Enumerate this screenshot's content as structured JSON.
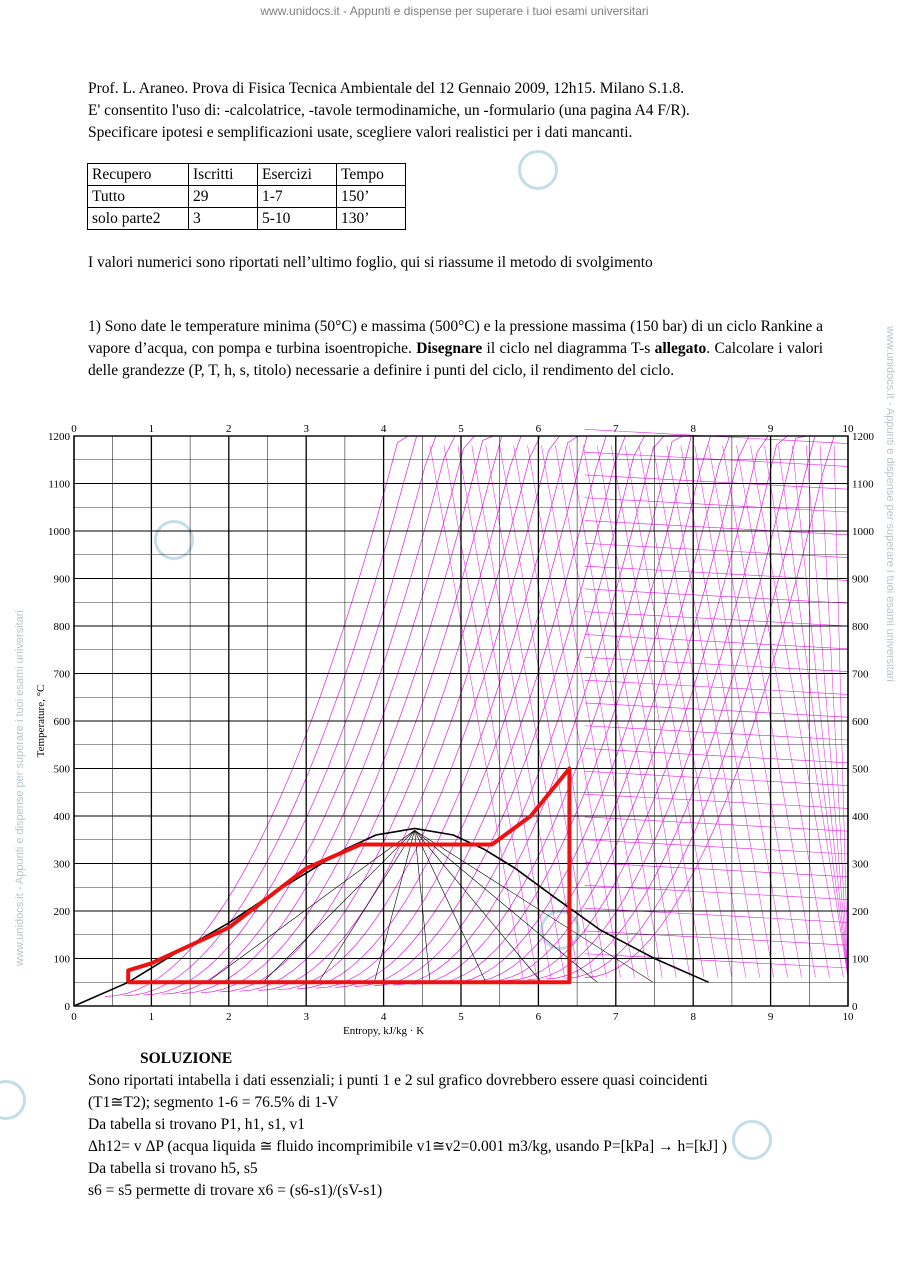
{
  "banner": {
    "text": "www.unidocs.it - Appunti e dispense per superare i tuoi esami universitari"
  },
  "header": {
    "line1": "Prof. L. Araneo.    Prova di Fisica Tecnica Ambientale del 12 Gennaio 2009, 12h15. Milano S.1.8.",
    "line2": "E' consentito l'uso di: -calcolatrice, -tavole termodinamiche, un -formulario (una pagina A4 F/R).",
    "line3": "Specificare ipotesi e semplificazioni usate, scegliere valori realistici per i dati mancanti."
  },
  "table": {
    "headers": [
      "Recupero",
      "Iscritti",
      "Esercizi",
      "Tempo"
    ],
    "rows": [
      [
        "Tutto",
        "29",
        "1-7",
        "150’"
      ],
      [
        "solo parte2",
        "3",
        "5-10",
        "130’"
      ]
    ]
  },
  "note": "I valori numerici sono riportati nell’ultimo foglio, qui si riassume il metodo di svolgimento",
  "question1": {
    "part1": "1)  Sono date le temperature minima (50°C) e massima (500°C) e la pressione massima (150 bar) di un ciclo Rankine a vapore d’acqua, con  pompa e turbina isoentropiche. ",
    "bold1": "Disegnare",
    "part2": " il ciclo nel diagramma T-s ",
    "bold2": "allegato",
    "part3": ". Calcolare i valori delle grandezze (P, T, h, s, titolo) necessarie a definire i punti del ciclo, il rendimento del ciclo."
  },
  "chart_data": {
    "type": "line",
    "xlabel": "Entropy, kJ/kg · K",
    "ylabel": "Temperature, °C",
    "xlim": [
      0,
      10
    ],
    "ylim": [
      0,
      1200
    ],
    "xticks": [
      "0",
      "1",
      "2",
      "3",
      "4",
      "5",
      "6",
      "7",
      "8",
      "9",
      "10"
    ],
    "yticks": [
      "0",
      "100",
      "200",
      "300",
      "400",
      "500",
      "600",
      "700",
      "800",
      "900",
      "1000",
      "1100",
      "1200"
    ],
    "grid": true,
    "colors": {
      "isolines": "#e020e0",
      "cycle": "#ee1111",
      "dome": "#000000"
    },
    "dome": {
      "x": [
        0,
        0.7,
        1.3,
        2.0,
        2.6,
        3.1,
        3.5,
        3.9,
        4.4,
        4.9,
        5.3,
        5.7,
        6.2,
        6.8,
        7.5,
        8.2
      ],
      "y": [
        0,
        50,
        110,
        175,
        240,
        290,
        330,
        360,
        374,
        360,
        330,
        290,
        230,
        160,
        100,
        50
      ]
    },
    "cycle": {
      "x": [
        0.7,
        0.7,
        1.0,
        2.0,
        3.0,
        3.7,
        5.3,
        5.4,
        5.9,
        6.4,
        6.4,
        0.7
      ],
      "y": [
        50,
        75,
        90,
        165,
        290,
        340,
        340,
        340,
        400,
        500,
        50,
        50
      ]
    }
  },
  "solution": {
    "title": "SOLUZIONE",
    "line1": "Sono riportati intabella i dati essenziali; i punti 1 e 2 sul grafico dovrebbero essere quasi coincidenti",
    "line2": "(T1≅T2); segmento 1-6 = 76.5% di 1-V",
    "line3": "Da tabella si trovano P1, h1, s1, v1",
    "line4": "Δh12= v ΔP (acqua liquida ≅ fluido incomprimibile v1≅v2=0.001 m3/kg, usando P=[kPa] → h=[kJ] )",
    "line5": "Da tabella si trovano h5, s5",
    "line6": "s6 = s5 permette di trovare x6 = (s6-s1)/(sV-s1)"
  }
}
